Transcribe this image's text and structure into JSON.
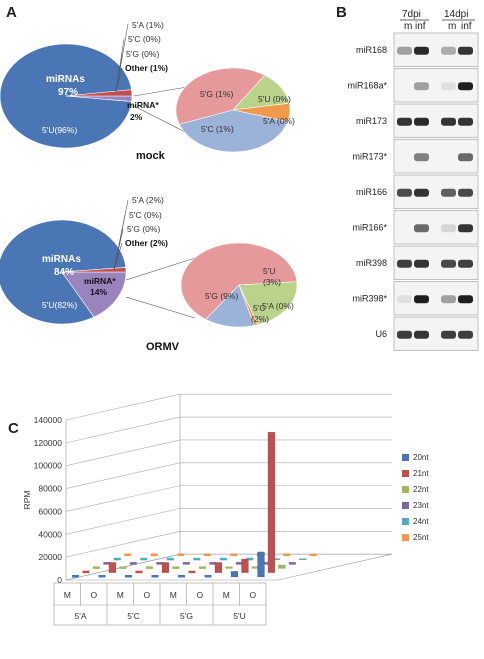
{
  "panels": {
    "a": "A",
    "b": "B",
    "c": "C"
  },
  "mock": {
    "condition": "mock",
    "main_slices": [
      {
        "label": "miRNAs",
        "value": "97%",
        "inner": "5'U(96%)",
        "color": "#4a76b5"
      },
      {
        "label": "miRNA*",
        "value": "2%",
        "color": "#9b83be"
      },
      {
        "label": "Other (1%)",
        "color": "#c0504d"
      }
    ],
    "callouts": [
      "5'A (1%)",
      "5'C (0%)",
      "5'G (0%)",
      "Other (1%)"
    ],
    "star_label": "miRNA*",
    "star_value": "2%",
    "sub_slices": [
      {
        "label": "5'G (1%)",
        "color": "#e5999a",
        "pct": 0.4
      },
      {
        "label": "5'U (0%)",
        "color": "#b9d38a",
        "pct": 0.13
      },
      {
        "label": "5'A (0%)",
        "color": "#f1994c",
        "pct": 0.07
      },
      {
        "label": "5'C (1%)",
        "color": "#9bb2d9",
        "pct": 0.4
      }
    ]
  },
  "ormv": {
    "condition": "ORMV",
    "main_slices": [
      {
        "label": "miRNAs",
        "value": "84%",
        "inner": "5'U(82%)",
        "color": "#4a76b5"
      },
      {
        "label": "miRNA*",
        "value": "14%",
        "color": "#9b83be"
      },
      {
        "label": "Other (2%)",
        "color": "#c0504d"
      }
    ],
    "callouts": [
      "5'A (2%)",
      "5'C (0%)",
      "5'G (0%)",
      "Other (2%)"
    ],
    "star_label": "miRNA*",
    "star_value": "14%",
    "sub_slices": [
      {
        "label": "5'G (9%)",
        "color": "#e5999a",
        "pct": 0.64
      },
      {
        "label": "5'U",
        "label2": "(3%)",
        "color": "#b9d38a",
        "pct": 0.21
      },
      {
        "label": "5'A (0%)",
        "color": "#f1994c",
        "pct": 0.01
      },
      {
        "label": "5'C",
        "label2": "(2%)",
        "color": "#9bb2d9",
        "pct": 0.14
      }
    ]
  },
  "blot": {
    "header_7": "7dpi",
    "header_14": "14dpi",
    "sub_m": "m",
    "sub_inf": "inf",
    "rows": [
      {
        "label": "miR168",
        "i": [
          0.35,
          0.9,
          0.3,
          0.85
        ]
      },
      {
        "label": "miR168a*",
        "i": [
          0.0,
          0.35,
          0.05,
          0.95
        ]
      },
      {
        "label": "miR173",
        "i": [
          0.85,
          0.9,
          0.85,
          0.85
        ]
      },
      {
        "label": "miR173*",
        "i": [
          0.0,
          0.5,
          0.0,
          0.6
        ]
      },
      {
        "label": "miR166",
        "i": [
          0.75,
          0.85,
          0.65,
          0.75
        ]
      },
      {
        "label": "miR166*",
        "i": [
          0.0,
          0.6,
          0.1,
          0.85
        ]
      },
      {
        "label": "miR398",
        "i": [
          0.8,
          0.85,
          0.75,
          0.8
        ]
      },
      {
        "label": "miR398*",
        "i": [
          0.05,
          0.95,
          0.35,
          0.95
        ]
      },
      {
        "label": "U6",
        "i": [
          0.8,
          0.85,
          0.8,
          0.8
        ]
      }
    ]
  },
  "chart_data": {
    "type": "bar",
    "ylabel": "RPM",
    "yticks": [
      "0",
      "20000",
      "40000",
      "60000",
      "80000",
      "100000",
      "120000",
      "140000"
    ],
    "ylim": [
      0,
      140000
    ],
    "categories": [
      "M",
      "O",
      "M",
      "O",
      "M",
      "O",
      "M",
      "O"
    ],
    "groups": [
      "5'A",
      "5'C",
      "5'G",
      "5'U"
    ],
    "series": [
      {
        "name": "20nt",
        "color": "#4a76b5",
        "values": [
          0,
          0,
          0,
          0,
          0,
          0,
          5000,
          22000
        ]
      },
      {
        "name": "21nt",
        "color": "#c0504d",
        "values": [
          0,
          9000,
          0,
          9000,
          0,
          9000,
          12000,
          123000
        ]
      },
      {
        "name": "22nt",
        "color": "#9bbb59",
        "values": [
          0,
          0,
          0,
          0,
          0,
          1500,
          1500,
          3000
        ]
      },
      {
        "name": "23nt",
        "color": "#8064a2",
        "values": [
          0,
          0,
          0,
          0,
          0,
          0,
          0,
          0
        ]
      },
      {
        "name": "24nt",
        "color": "#4bacc6",
        "values": [
          0,
          0,
          0,
          0,
          0,
          0,
          1000,
          1000
        ]
      },
      {
        "name": "25nt",
        "color": "#f79646",
        "values": [
          0,
          0,
          0,
          0,
          0,
          0,
          0,
          0
        ]
      }
    ]
  }
}
